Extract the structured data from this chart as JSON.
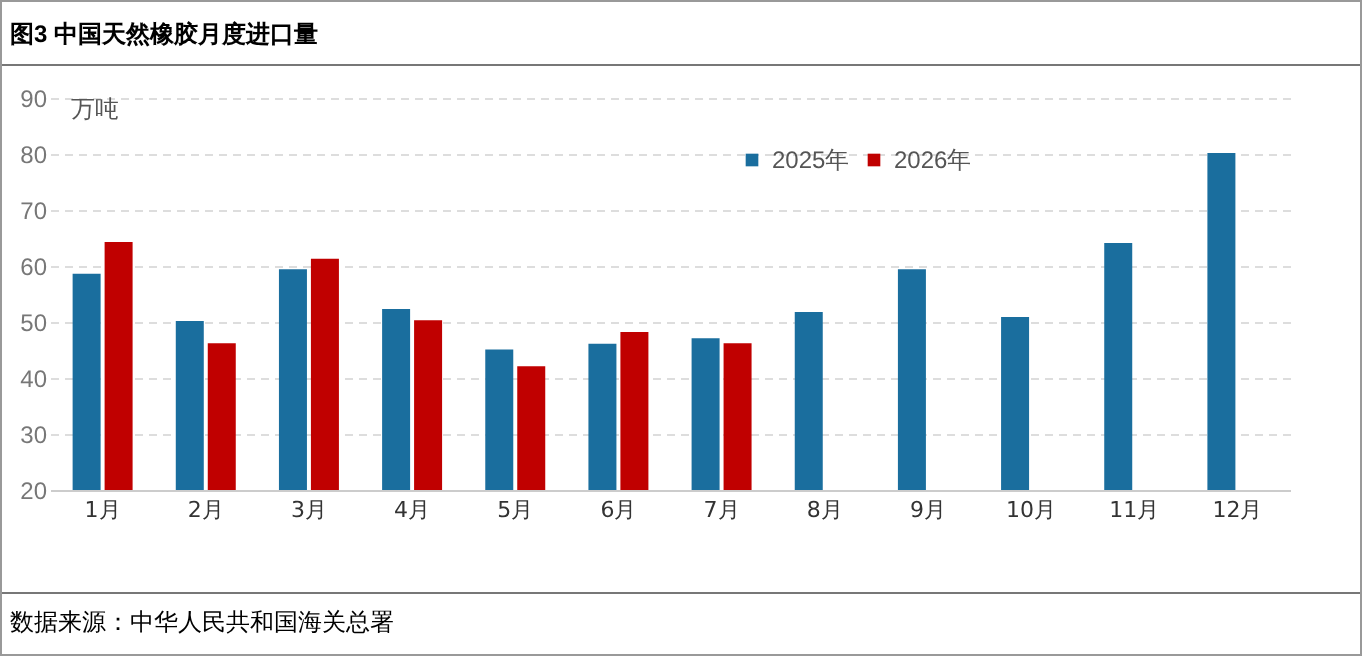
{
  "chart_data": {
    "type": "bar",
    "title": "图3  中国天然橡胶月度进口量",
    "ylabel": "万吨",
    "categories": [
      "1月",
      "2月",
      "3月",
      "4月",
      "5月",
      "6月",
      "7月",
      "8月",
      "9月",
      "10月",
      "11月",
      "12月"
    ],
    "series": [
      {
        "name": "2025年",
        "color": "#1a6e9e",
        "values": [
          58.6,
          50.2,
          59.4,
          52.3,
          45.1,
          46.1,
          47.1,
          51.8,
          59.4,
          50.9,
          64.1,
          80.2
        ]
      },
      {
        "name": "2026年",
        "color": "#c00000",
        "values": [
          64.3,
          46.2,
          61.3,
          50.3,
          42.1,
          48.2,
          46.2,
          null,
          null,
          null,
          null,
          null
        ]
      }
    ],
    "ylim": [
      20,
      90
    ],
    "yticks": [
      20,
      30,
      40,
      50,
      60,
      70,
      80,
      90
    ],
    "grid": "y",
    "legend": "top",
    "annotations": [
      "数据来源：中华人民共和国海关总署"
    ]
  }
}
